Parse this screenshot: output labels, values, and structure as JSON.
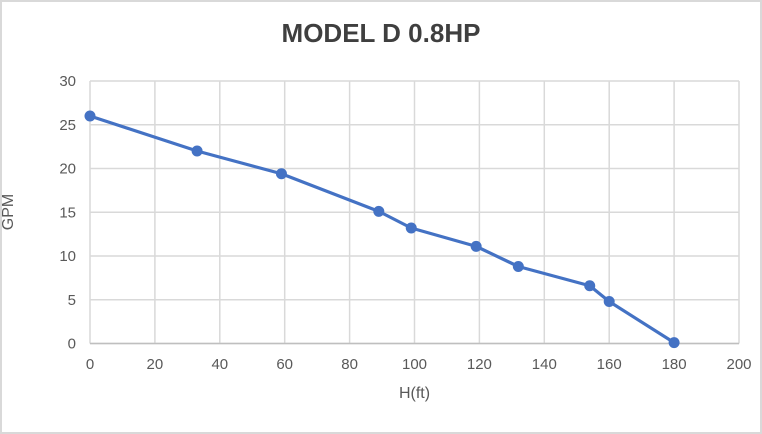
{
  "chart_data": {
    "type": "line",
    "title": "MODEL D 0.8HP",
    "xlabel": "H(ft)",
    "ylabel": "GPM",
    "xlim": [
      0,
      200
    ],
    "ylim": [
      0,
      30
    ],
    "x_ticks": [
      0,
      20,
      40,
      60,
      80,
      100,
      120,
      140,
      160,
      180,
      200
    ],
    "y_ticks": [
      0,
      5,
      10,
      15,
      20,
      25,
      30
    ],
    "grid": true,
    "legend_position": "none",
    "series": [
      {
        "name": "MODEL D 0.8HP",
        "marker": "circle",
        "points": [
          [
            0,
            26
          ],
          [
            33,
            22
          ],
          [
            59,
            19.4
          ],
          [
            89,
            15.1
          ],
          [
            99,
            13.2
          ],
          [
            119,
            11.1
          ],
          [
            132,
            8.8
          ],
          [
            154,
            6.6
          ],
          [
            160,
            4.8
          ],
          [
            180,
            0.1
          ]
        ]
      }
    ],
    "colors": {
      "line": "#4472c4",
      "marker": "#4472c4",
      "gridline": "#d9d9d9",
      "axis_line": "#bfbfbf",
      "title_text": "#3f3f3f",
      "label_text": "#595959",
      "frame_border": "#d9d9d9",
      "background": "#ffffff"
    }
  }
}
